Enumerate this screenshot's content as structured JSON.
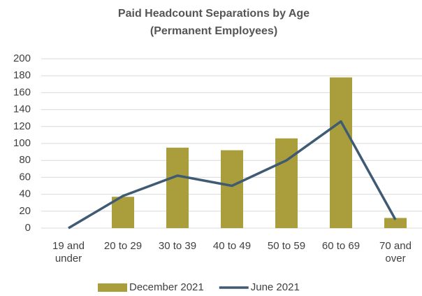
{
  "chart_data": {
    "type": "bar-line",
    "title": "Paid Headcount Separations by Age",
    "subtitle": "(Permanent Employees)",
    "categories": [
      "19 and under",
      "20 to 29",
      "30 to 39",
      "40 to 49",
      "50 to 59",
      "60 to 69",
      "70 and over"
    ],
    "series": [
      {
        "name": "December 2021",
        "type": "bar",
        "color": "#a99e3b",
        "values": [
          0,
          37,
          95,
          92,
          106,
          178,
          12
        ]
      },
      {
        "name": "June 2021",
        "type": "line",
        "color": "#3f5a73",
        "values": [
          0,
          38,
          62,
          50,
          80,
          126,
          10
        ]
      }
    ],
    "ylim": [
      0,
      200
    ],
    "yticks": [
      0,
      20,
      40,
      60,
      80,
      100,
      120,
      140,
      160,
      180,
      200
    ],
    "grid": true,
    "legend": "bottom"
  }
}
